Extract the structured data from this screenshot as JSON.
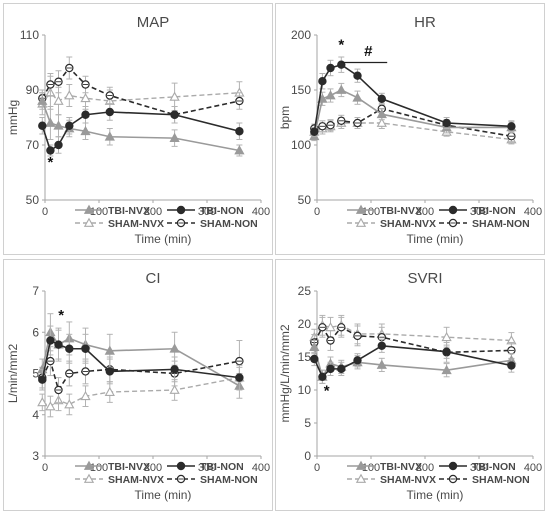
{
  "legend_labels": {
    "tbi_nvx": "TBI-NVX",
    "tbi_non": "TBI-NON",
    "sham_nvx": "SHAM-NVX",
    "sham_non": "SHAM-NON"
  },
  "colors": {
    "tbi_nvx": "#9a9a9a",
    "tbi_non": "#2b2b2b",
    "sham_nvx": "#aaaaaa",
    "sham_non": "#2b2b2b",
    "error_bar": "#b3b3b3",
    "frame": "#d0d0d0"
  },
  "chart_data": [
    {
      "type": "line",
      "title": "MAP",
      "xlabel": "Time (min)",
      "ylabel": "mmHg",
      "xlim": [
        0,
        400
      ],
      "ylim": [
        50,
        110
      ],
      "xticks": [
        0,
        100,
        200,
        300,
        400
      ],
      "yticks": [
        50,
        70,
        90,
        110
      ],
      "legend_position": "bottom",
      "annotations": [
        {
          "text": "*",
          "x": 10,
          "y": 62
        }
      ],
      "series": [
        {
          "key": "tbi_nvx",
          "x": [
            -5,
            10,
            25,
            45,
            75,
            120,
            240,
            360
          ],
          "y": [
            86,
            78,
            77,
            76,
            75,
            73,
            72.5,
            68
          ],
          "err": [
            3,
            6,
            4,
            3,
            3,
            3,
            3,
            2
          ]
        },
        {
          "key": "tbi_non",
          "x": [
            -5,
            10,
            25,
            45,
            75,
            120,
            240,
            360
          ],
          "y": [
            77,
            68,
            70,
            77,
            81,
            82,
            81,
            75
          ],
          "err": [
            3,
            2,
            3,
            3,
            3,
            3,
            3,
            3
          ]
        },
        {
          "key": "sham_nvx",
          "x": [
            -5,
            10,
            25,
            45,
            75,
            120,
            240,
            360
          ],
          "y": [
            85,
            89,
            86,
            88,
            87,
            86,
            87.5,
            89
          ],
          "err": [
            4,
            6,
            5,
            4,
            4,
            4,
            5,
            4
          ]
        },
        {
          "key": "sham_non",
          "x": [
            -5,
            10,
            25,
            45,
            75,
            120,
            240,
            360
          ],
          "y": [
            87,
            92,
            93,
            98,
            92,
            88,
            81,
            86
          ],
          "err": [
            3,
            4,
            4,
            4,
            3,
            3,
            3,
            3
          ]
        }
      ]
    },
    {
      "type": "line",
      "title": "HR",
      "xlabel": "Time (min)",
      "ylabel": "bpm",
      "xlim": [
        0,
        400
      ],
      "ylim": [
        50,
        200
      ],
      "xticks": [
        0,
        100,
        200,
        300,
        400
      ],
      "yticks": [
        50,
        100,
        150,
        200
      ],
      "legend_position": "bottom",
      "annotations": [
        {
          "text": "*",
          "x": 45,
          "y": 187
        },
        {
          "text": "#",
          "x": 95,
          "y": 181
        }
      ],
      "bracket": {
        "x1": 45,
        "x2": 130,
        "y": 175
      },
      "series": [
        {
          "key": "tbi_nvx",
          "x": [
            -5,
            10,
            25,
            45,
            75,
            120,
            240,
            360
          ],
          "y": [
            108,
            142,
            145,
            150,
            143,
            128,
            116,
            116
          ],
          "err": [
            4,
            6,
            6,
            6,
            6,
            5,
            5,
            5
          ]
        },
        {
          "key": "tbi_non",
          "x": [
            -5,
            10,
            25,
            45,
            75,
            120,
            240,
            360
          ],
          "y": [
            112,
            158,
            170,
            173,
            163,
            142,
            120,
            117
          ],
          "err": [
            4,
            7,
            7,
            7,
            6,
            5,
            5,
            5
          ]
        },
        {
          "key": "sham_nvx",
          "x": [
            -5,
            10,
            25,
            45,
            75,
            120,
            240,
            360
          ],
          "y": [
            112,
            115,
            117,
            120,
            120,
            120,
            112,
            105
          ],
          "err": [
            4,
            5,
            5,
            5,
            5,
            5,
            4,
            4
          ]
        },
        {
          "key": "sham_non",
          "x": [
            -5,
            10,
            25,
            45,
            75,
            120,
            240,
            360
          ],
          "y": [
            115,
            117,
            118,
            122,
            120,
            133,
            118,
            108
          ],
          "err": [
            4,
            5,
            5,
            5,
            5,
            5,
            5,
            5
          ]
        }
      ]
    },
    {
      "type": "line",
      "title": "CI",
      "xlabel": "Time (min)",
      "ylabel": "L/min/mm2",
      "xlim": [
        0,
        400
      ],
      "ylim": [
        3,
        7
      ],
      "xticks": [
        0,
        100,
        200,
        300,
        400
      ],
      "yticks": [
        3,
        4,
        5,
        6,
        7
      ],
      "legend_position": "bottom",
      "annotations": [
        {
          "text": "*",
          "x": 30,
          "y": 6.3
        }
      ],
      "series": [
        {
          "key": "tbi_nvx",
          "x": [
            -5,
            10,
            25,
            45,
            75,
            120,
            240,
            360
          ],
          "y": [
            5.1,
            6.0,
            5.7,
            5.85,
            5.7,
            5.55,
            5.6,
            4.7
          ],
          "err": [
            0.25,
            0.45,
            0.4,
            0.4,
            0.4,
            0.4,
            0.4,
            0.3
          ]
        },
        {
          "key": "tbi_non",
          "x": [
            -5,
            10,
            25,
            45,
            75,
            120,
            240,
            360
          ],
          "y": [
            4.85,
            5.8,
            5.7,
            5.6,
            5.6,
            5.05,
            5.1,
            4.9
          ],
          "err": [
            0.25,
            0.35,
            0.35,
            0.35,
            0.35,
            0.3,
            0.3,
            0.3
          ]
        },
        {
          "key": "sham_nvx",
          "x": [
            -5,
            10,
            25,
            45,
            75,
            120,
            240,
            360
          ],
          "y": [
            4.3,
            4.2,
            4.35,
            4.25,
            4.45,
            4.55,
            4.6,
            4.9
          ],
          "err": [
            0.2,
            0.25,
            0.25,
            0.25,
            0.25,
            0.25,
            0.25,
            0.25
          ]
        },
        {
          "key": "sham_non",
          "x": [
            -5,
            10,
            25,
            45,
            75,
            120,
            240,
            360
          ],
          "y": [
            4.9,
            5.3,
            4.6,
            5.0,
            5.05,
            5.1,
            5.0,
            5.3
          ],
          "err": [
            0.25,
            0.35,
            0.3,
            0.3,
            0.3,
            0.3,
            0.3,
            0.5
          ]
        }
      ]
    },
    {
      "type": "line",
      "title": "SVRI",
      "xlabel": "Time (min)",
      "ylabel": "mmHg/L/min/mm2",
      "xlim": [
        0,
        400
      ],
      "ylim": [
        0,
        25
      ],
      "xticks": [
        0,
        100,
        200,
        300,
        400
      ],
      "yticks": [
        0,
        5,
        10,
        15,
        20,
        25
      ],
      "legend_position": "bottom",
      "annotations": [
        {
          "text": "*",
          "x": 18,
          "y": 9.2
        }
      ],
      "series": [
        {
          "key": "tbi_nvx",
          "x": [
            -5,
            10,
            25,
            45,
            75,
            120,
            240,
            360
          ],
          "y": [
            16.5,
            12,
            14,
            13.5,
            14.2,
            13.8,
            13,
            14.5
          ],
          "err": [
            1,
            1,
            1,
            1,
            1,
            1,
            1,
            1
          ]
        },
        {
          "key": "tbi_non",
          "x": [
            -5,
            10,
            25,
            45,
            75,
            120,
            240,
            360
          ],
          "y": [
            14.7,
            12,
            13.2,
            13.2,
            14.5,
            16.7,
            15.8,
            13.7
          ],
          "err": [
            1,
            1,
            1,
            1,
            1,
            1,
            1,
            1
          ]
        },
        {
          "key": "sham_nvx",
          "x": [
            -5,
            10,
            25,
            45,
            75,
            120,
            240,
            360
          ],
          "y": [
            18,
            19.8,
            19.5,
            19.8,
            18.5,
            18.5,
            18,
            17.5
          ],
          "err": [
            1.2,
            1.5,
            1.5,
            1.5,
            1.5,
            1.5,
            1.5,
            1.2
          ]
        },
        {
          "key": "sham_non",
          "x": [
            -5,
            10,
            25,
            45,
            75,
            120,
            240,
            360
          ],
          "y": [
            17.2,
            19.5,
            17.5,
            19.5,
            18.2,
            18,
            15.7,
            16
          ],
          "err": [
            1.2,
            1.5,
            1.5,
            1.5,
            1.5,
            1.5,
            1.5,
            1.2
          ]
        }
      ]
    }
  ]
}
